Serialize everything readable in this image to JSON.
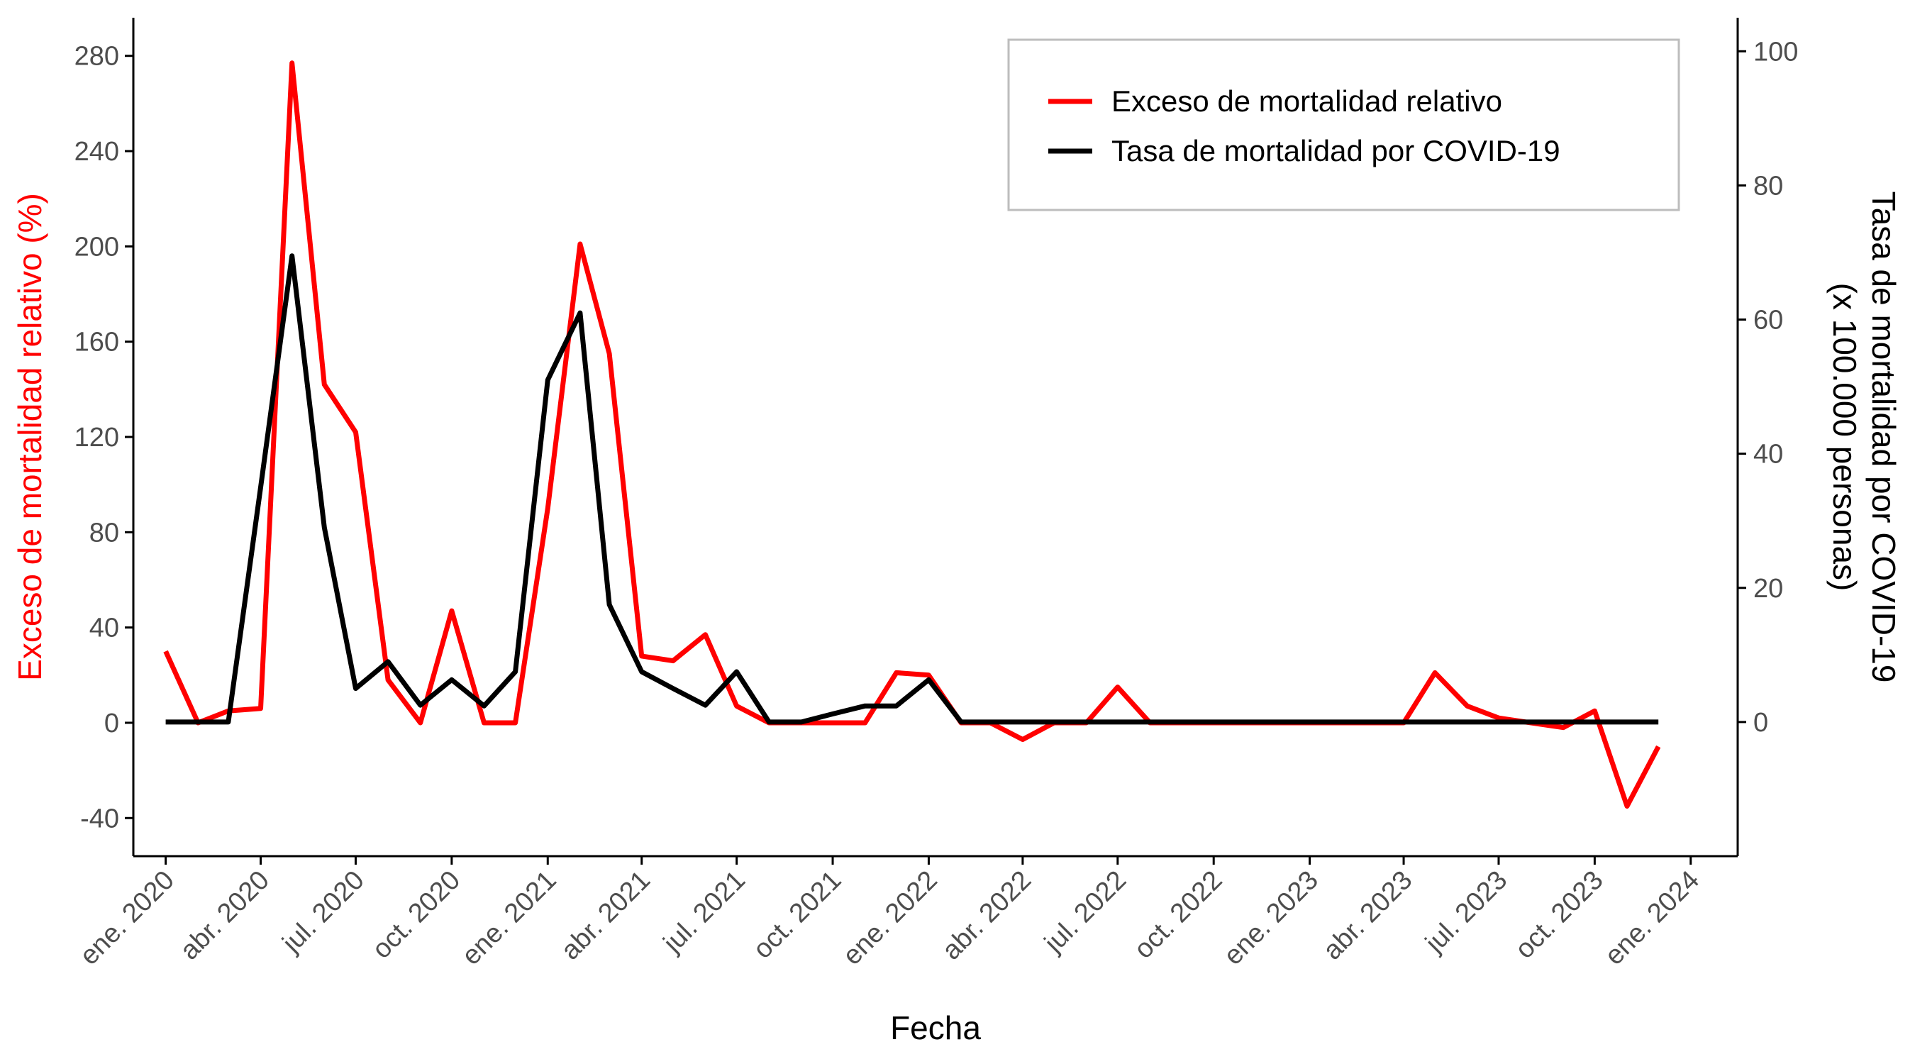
{
  "chart_data": {
    "type": "line",
    "title": "",
    "xlabel": "Fecha",
    "ylabel_left": "Exceso de mortalidad relativo (%)",
    "ylabel_right_line1": "Tasa de mortalidad por COVID-19",
    "ylabel_right_line2": "(x 100.000 personas)",
    "x_ticks": [
      "ene. 2020",
      "abr. 2020",
      "jul. 2020",
      "oct. 2020",
      "ene. 2021",
      "abr. 2021",
      "jul. 2021",
      "oct. 2021",
      "ene. 2022",
      "abr. 2022",
      "jul. 2022",
      "oct. 2022",
      "ene. 2023",
      "abr. 2023",
      "jul. 2023",
      "oct. 2023",
      "ene. 2024"
    ],
    "x_range": [
      "2019-12-01",
      "2024-02-15"
    ],
    "ylim_left": [
      -56,
      296
    ],
    "yticks_left": [
      -40,
      0,
      40,
      80,
      120,
      160,
      200,
      240,
      280
    ],
    "ylim_right": [
      -20,
      105
    ],
    "yticks_right": [
      0,
      20,
      40,
      60,
      80,
      100
    ],
    "grid": false,
    "legend_position": "top-right",
    "colors": {
      "exceso": "#ff0000",
      "tasa": "#000000"
    },
    "series": [
      {
        "name": "Exceso de mortalidad relativo",
        "axis": "left",
        "color": "#ff0000",
        "x": [
          "2020-01-01",
          "2020-02-01",
          "2020-03-01",
          "2020-04-01",
          "2020-05-01",
          "2020-06-01",
          "2020-07-01",
          "2020-08-01",
          "2020-09-01",
          "2020-10-01",
          "2020-11-01",
          "2020-12-01",
          "2021-01-01",
          "2021-02-01",
          "2021-03-01",
          "2021-04-01",
          "2021-05-01",
          "2021-06-01",
          "2021-07-01",
          "2021-08-01",
          "2021-09-01",
          "2021-10-01",
          "2021-11-01",
          "2021-12-01",
          "2022-01-01",
          "2022-02-01",
          "2022-03-01",
          "2022-04-01",
          "2022-05-01",
          "2022-06-01",
          "2022-07-01",
          "2022-08-01",
          "2022-09-01",
          "2022-10-01",
          "2022-11-01",
          "2022-12-01",
          "2023-01-01",
          "2023-02-01",
          "2023-03-01",
          "2023-04-01",
          "2023-05-01",
          "2023-06-01",
          "2023-07-01",
          "2023-08-01",
          "2023-09-01",
          "2023-10-01",
          "2023-11-01",
          "2023-12-01"
        ],
        "y": [
          30,
          0,
          5,
          6,
          277,
          142,
          122,
          18,
          0,
          47,
          0,
          0,
          90,
          201,
          155,
          28,
          26,
          37,
          7,
          0,
          0,
          0,
          0,
          21,
          20,
          0,
          0,
          -7,
          0,
          0,
          15,
          0,
          0,
          0,
          0,
          0,
          0,
          0,
          0,
          0,
          21,
          7,
          2,
          0,
          -2,
          5,
          -35,
          -10
        ]
      },
      {
        "name": "Tasa de mortalidad por COVID-19",
        "axis": "right",
        "color": "#000000",
        "x": [
          "2020-01-01",
          "2020-02-01",
          "2020-03-01",
          "2020-04-01",
          "2020-05-01",
          "2020-06-01",
          "2020-07-01",
          "2020-08-01",
          "2020-09-01",
          "2020-10-01",
          "2020-11-01",
          "2020-12-01",
          "2021-01-01",
          "2021-02-01",
          "2021-03-01",
          "2021-04-01",
          "2021-05-01",
          "2021-06-01",
          "2021-07-01",
          "2021-08-01",
          "2021-09-01",
          "2021-10-01",
          "2021-11-01",
          "2021-12-01",
          "2022-01-01",
          "2022-02-01",
          "2022-03-01",
          "2022-04-01",
          "2022-05-01",
          "2022-06-01",
          "2022-07-01",
          "2022-08-01",
          "2022-09-01",
          "2022-10-01",
          "2022-11-01",
          "2022-12-01",
          "2023-01-01",
          "2023-02-01",
          "2023-03-01",
          "2023-04-01",
          "2023-05-01",
          "2023-06-01",
          "2023-07-01",
          "2023-08-01",
          "2023-09-01",
          "2023-10-01",
          "2023-11-01",
          "2023-12-01"
        ],
        "y": [
          0,
          0,
          0,
          35,
          69.5,
          29,
          5,
          9,
          2.5,
          6.3,
          2.4,
          7.5,
          51,
          61,
          17.5,
          7.5,
          5,
          2.5,
          7.5,
          0,
          0,
          1.2,
          2.4,
          2.4,
          6.3,
          0,
          0,
          0,
          0,
          0,
          0,
          0,
          0,
          0,
          0,
          0,
          0,
          0,
          0,
          0,
          0,
          0,
          0,
          0,
          0,
          0,
          0,
          0
        ]
      }
    ]
  }
}
